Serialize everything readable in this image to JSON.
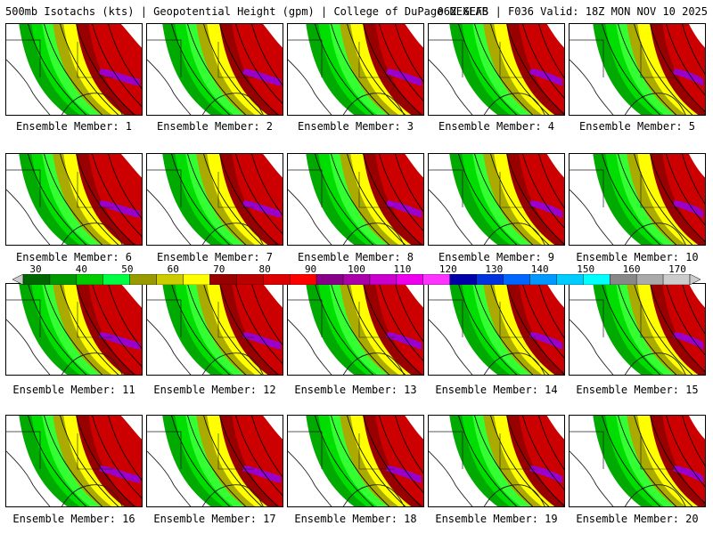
{
  "header": {
    "left": "500mb Isotachs (kts) | Geopotential Height (gpm) | College of DuPage NEXLAB",
    "right": "06Z GEFS | F036 Valid: 18Z MON NOV 10 2025"
  },
  "members": [
    "Ensemble Member: 1",
    "Ensemble Member: 2",
    "Ensemble Member: 3",
    "Ensemble Member: 4",
    "Ensemble Member: 5",
    "Ensemble Member: 6",
    "Ensemble Member: 7",
    "Ensemble Member: 8",
    "Ensemble Member: 9",
    "Ensemble Member: 10",
    "Ensemble Member: 11",
    "Ensemble Member: 12",
    "Ensemble Member: 13",
    "Ensemble Member: 14",
    "Ensemble Member: 15",
    "Ensemble Member: 16",
    "Ensemble Member: 17",
    "Ensemble Member: 18",
    "Ensemble Member: 19",
    "Ensemble Member: 20"
  ],
  "colorbar": {
    "labels": [
      "30",
      "40",
      "50",
      "60",
      "70",
      "80",
      "90",
      "100",
      "110",
      "120",
      "130",
      "140",
      "150",
      "160",
      "170"
    ],
    "colors": [
      "#006600",
      "#009900",
      "#00cc00",
      "#00ff44",
      "#999900",
      "#cccc00",
      "#ffff00",
      "#990000",
      "#bb0000",
      "#dd0000",
      "#ff0000",
      "#880088",
      "#aa00aa",
      "#cc00cc",
      "#ee00ee",
      "#ff33ff",
      "#0000aa",
      "#0033dd",
      "#0066ff",
      "#0099ff",
      "#00ccff",
      "#00ffff",
      "#888888",
      "#aaaaaa",
      "#cccccc"
    ]
  },
  "legend_colors": {
    "green_dark": "#00aa00",
    "green": "#00dd00",
    "green_light": "#33ff33",
    "olive": "#aaaa00",
    "yellow": "#ffff00",
    "red_dark": "#990000",
    "red": "#cc0000",
    "purple": "#9900cc"
  }
}
